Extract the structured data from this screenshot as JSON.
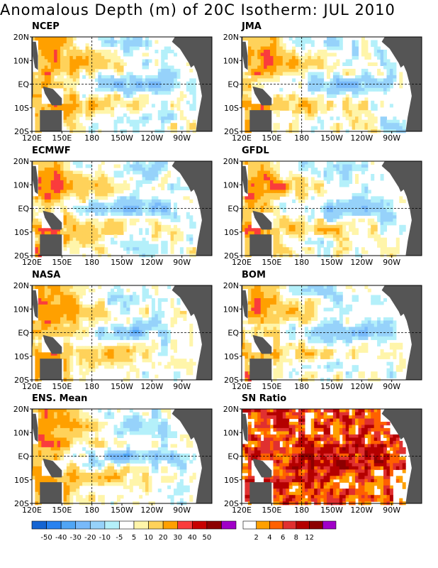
{
  "title": "Anomalous Depth (m) of 20C Isotherm: JUL 2010",
  "axes": {
    "lat_labels": [
      "20N",
      "10N",
      "EQ",
      "10S",
      "20S"
    ],
    "lon_labels": [
      "120E",
      "150E",
      "180",
      "150W",
      "120W",
      "90W"
    ]
  },
  "panels": [
    {
      "name": "NCEP"
    },
    {
      "name": "JMA"
    },
    {
      "name": "ECMWF"
    },
    {
      "name": "GFDL"
    },
    {
      "name": "NASA"
    },
    {
      "name": "BOM"
    },
    {
      "name": "ENS. Mean"
    },
    {
      "name": "SN Ratio"
    }
  ],
  "colorbar_anom": {
    "ticks": [
      "-50",
      "-40",
      "-30",
      "-20",
      "-10",
      "-5",
      "5",
      "10",
      "20",
      "30",
      "40",
      "50"
    ],
    "colors": [
      "#1464d2",
      "#2882f0",
      "#50a5f5",
      "#78b9fa",
      "#96d2fa",
      "#b4f0fa",
      "#ffffff",
      "#fff5aa",
      "#ffd25a",
      "#ffa000",
      "#fa3c3c",
      "#c80000",
      "#8c0000",
      "#a000c8"
    ]
  },
  "colorbar_sn": {
    "ticks": [
      "2",
      "4",
      "6",
      "8",
      "12"
    ],
    "colors": [
      "#ffffff",
      "#ffa000",
      "#ff6000",
      "#e03030",
      "#b40000",
      "#8c0000",
      "#a000c8"
    ]
  },
  "colors": {
    "land": "#555555"
  }
}
